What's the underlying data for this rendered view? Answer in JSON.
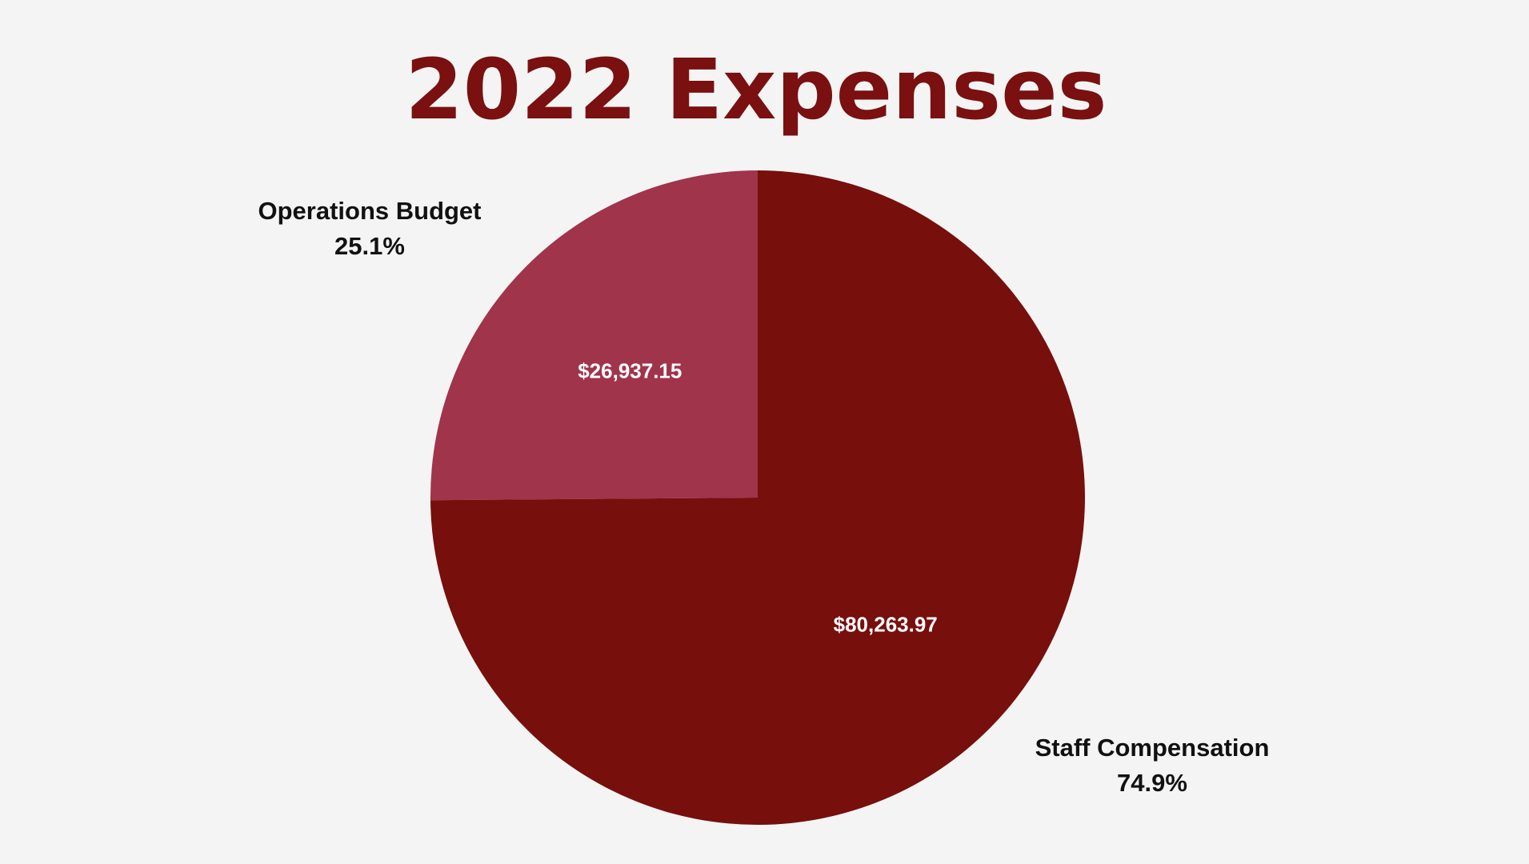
{
  "chart_data": {
    "type": "pie",
    "title": "2022 Expenses",
    "slices": [
      {
        "label": "Operations Budget",
        "value": 26937.15,
        "value_label": "$26,937.15",
        "percent_label": "25.1%",
        "color": "#a0344b"
      },
      {
        "label": "Staff Compensation",
        "value": 80263.97,
        "value_label": "$80,263.97",
        "percent_label": "74.9%",
        "color": "#770f0c"
      }
    ],
    "start_angle": "12 o'clock",
    "direction": "counterclockwise for Operations Budget"
  },
  "colors": {
    "background": "#f4f4f4",
    "title": "#7a1010"
  }
}
